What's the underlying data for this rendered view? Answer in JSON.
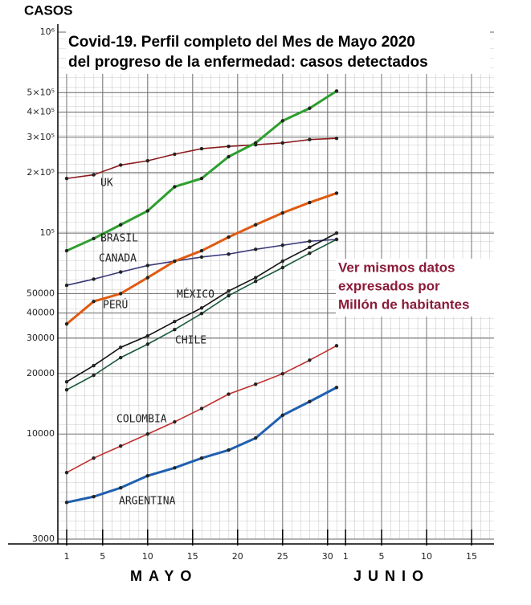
{
  "chart_data": {
    "type": "line",
    "title": [
      "Covid-19. Perfil completo del Mes de Mayo 2020",
      "del progreso de la enfermedad: casos detectados"
    ],
    "y_label": "CASOS",
    "month_labels": [
      "MAYO",
      "JUNIO"
    ],
    "annotation": [
      "Ver mismos datos",
      "expresados por",
      "Millón de habitantes"
    ],
    "log_y": true,
    "grid": true,
    "xlim": [
      0,
      48
    ],
    "ylim": [
      3000,
      1000000
    ],
    "xticks": [
      1,
      5,
      10,
      15,
      20,
      25,
      30,
      {
        "value": 32,
        "label": "1"
      },
      {
        "value": 36,
        "label": "5"
      },
      {
        "value": 41,
        "label": "10"
      },
      {
        "value": 46,
        "label": "15"
      }
    ],
    "yticks": [
      3000,
      10000,
      20000,
      30000,
      40000,
      50000,
      {
        "value": 100000,
        "label": "10⁵"
      },
      {
        "value": 200000,
        "label": "2×10⁵"
      },
      {
        "value": 300000,
        "label": "3×10⁵"
      },
      {
        "value": 400000,
        "label": "4×10⁵"
      },
      {
        "value": 500000,
        "label": "5×10⁵"
      },
      {
        "value": 1000000,
        "label": "10⁶"
      }
    ],
    "x": [
      1,
      4,
      7,
      10,
      13,
      16,
      19,
      22,
      25,
      28,
      31
    ],
    "series": [
      {
        "name": "UK",
        "color": "#8b1a1a",
        "values": [
          187000,
          195000,
          218000,
          229000,
          247000,
          263000,
          270000,
          275000,
          281000,
          292000,
          296000
        ]
      },
      {
        "name": "BRASIL",
        "color": "#2e9e2e",
        "values": [
          81700,
          93900,
          110000,
          129000,
          170000,
          187000,
          240000,
          281000,
          362000,
          418000,
          509000
        ]
      },
      {
        "name": "CANADA",
        "color": "#3a3a7a",
        "values": [
          55000,
          59000,
          64000,
          69000,
          72500,
          76000,
          78600,
          83000,
          87000,
          91000,
          93000
        ]
      },
      {
        "name": "PERÚ",
        "color": "#e05a10",
        "values": [
          35300,
          45700,
          50000,
          60000,
          72500,
          81700,
          95500,
          110000,
          126000,
          142000,
          158000
        ]
      },
      {
        "name": "MÉXICO",
        "color": "#111111",
        "values": [
          18200,
          21900,
          27000,
          30800,
          36300,
          42400,
          51500,
          60000,
          72500,
          85000,
          100000
        ]
      },
      {
        "name": "CHILE",
        "color": "#1a5a3a",
        "values": [
          16600,
          19600,
          24000,
          28000,
          33100,
          39800,
          48800,
          57500,
          67300,
          79400,
          93000
        ]
      },
      {
        "name": "COLOMBIA",
        "color": "#c03030",
        "values": [
          6430,
          7590,
          8710,
          10000,
          11500,
          13400,
          15800,
          17700,
          19950,
          23300,
          27500
        ]
      },
      {
        "name": "ARGENTINA",
        "color": "#1f5fb0",
        "values": [
          4570,
          4880,
          5400,
          6200,
          6790,
          7590,
          8320,
          9550,
          12400,
          14500,
          17050
        ]
      }
    ]
  }
}
